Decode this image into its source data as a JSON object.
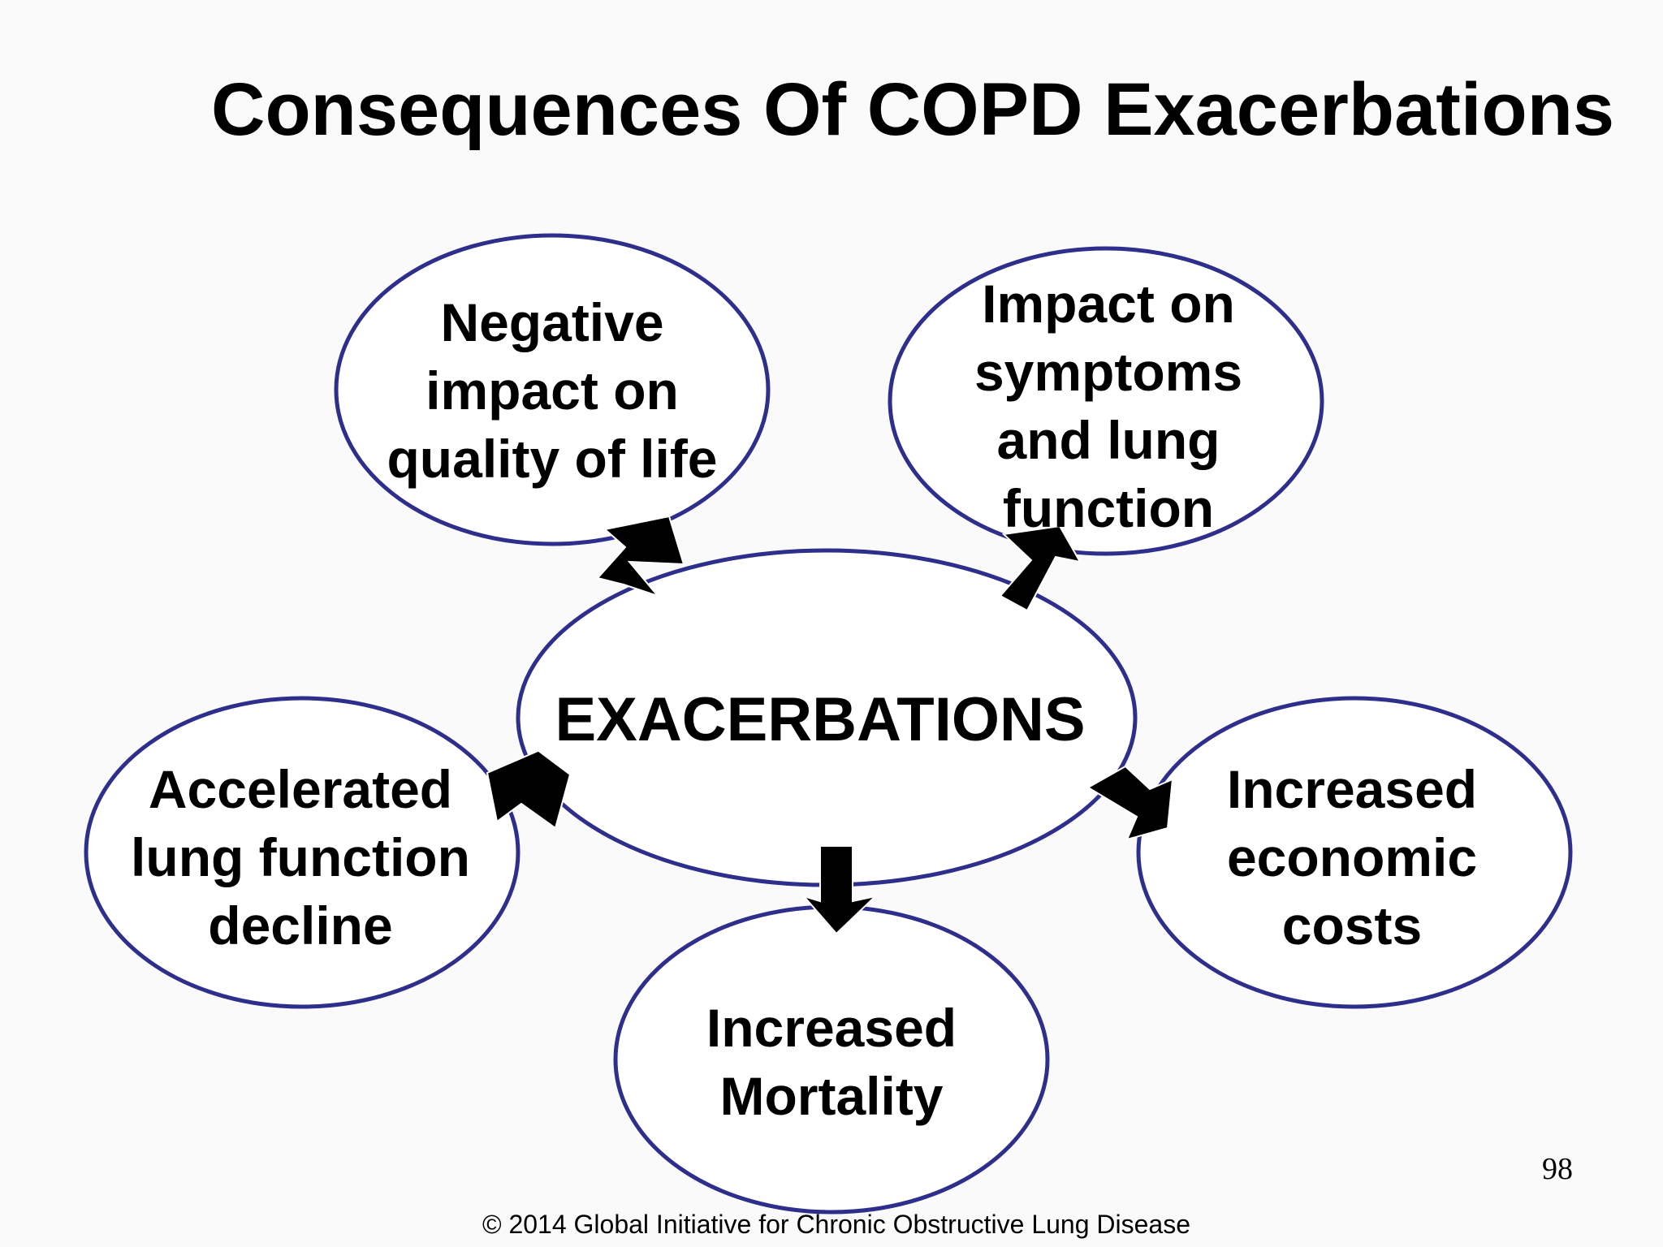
{
  "title": "Consequences Of COPD Exacerbations",
  "center_node": {
    "label": "EXACERBATIONS"
  },
  "outcomes": [
    {
      "id": "quality-of-life",
      "lines": [
        "Negative",
        "impact on",
        "quality of life"
      ]
    },
    {
      "id": "symptoms-lung-function",
      "lines": [
        "Impact on",
        "symptoms",
        "and lung",
        "function"
      ]
    },
    {
      "id": "lung-function-decline",
      "lines": [
        "Accelerated",
        "lung function",
        "decline"
      ]
    },
    {
      "id": "economic-costs",
      "lines": [
        "Increased",
        "economic",
        "costs"
      ]
    },
    {
      "id": "mortality",
      "lines": [
        "Increased",
        "Mortality"
      ]
    }
  ],
  "colors": {
    "ellipse_outline": "#2e2e8c",
    "arrow_fill": "#000000",
    "text": "#000000"
  },
  "footer": {
    "page_number": "98",
    "copyright": "© 2014 Global Initiative for Chronic Obstructive Lung Disease"
  }
}
